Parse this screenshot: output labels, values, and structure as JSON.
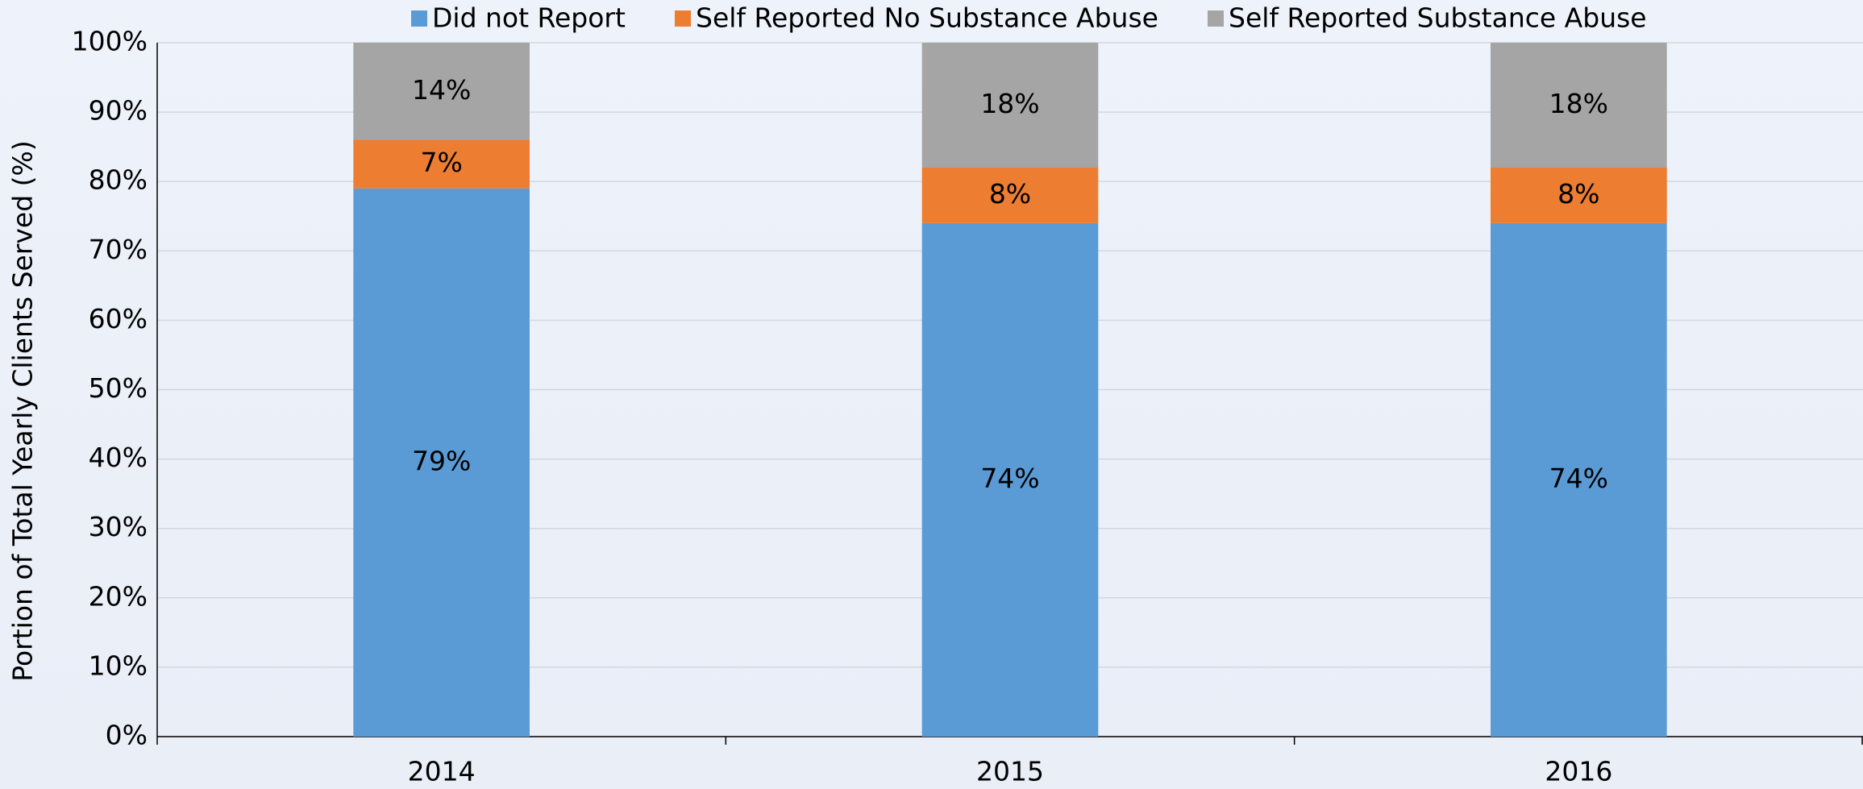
{
  "chart_data": {
    "type": "stacked_bar",
    "y_label": "Portion of Total Yearly Clients Served (%)",
    "categories": [
      "2014",
      "2015",
      "2016"
    ],
    "series": [
      {
        "name": "Did not Report",
        "color": "#5b9bd5",
        "label_color": "#ffffff",
        "values": [
          79,
          74,
          74
        ],
        "value_labels": [
          "79%",
          "74%",
          "74%"
        ]
      },
      {
        "name": "Self Reported No Substance Abuse",
        "color": "#ed7d31",
        "label_color": "#000000",
        "values": [
          7,
          8,
          8
        ],
        "value_labels": [
          "7%",
          "8%",
          "8%"
        ]
      },
      {
        "name": "Self Reported Substance Abuse",
        "color": "#a5a5a5",
        "label_color": "#404040",
        "values": [
          14,
          18,
          18
        ],
        "value_labels": [
          "14%",
          "18%",
          "18%"
        ]
      }
    ],
    "ylim": [
      0,
      100
    ],
    "yticks": [
      {
        "value": 0,
        "label": "0%"
      },
      {
        "value": 10,
        "label": "10%"
      },
      {
        "value": 20,
        "label": "20%"
      },
      {
        "value": 30,
        "label": "30%"
      },
      {
        "value": 40,
        "label": "40%"
      },
      {
        "value": 50,
        "label": "50%"
      },
      {
        "value": 60,
        "label": "60%"
      },
      {
        "value": 70,
        "label": "70%"
      },
      {
        "value": 80,
        "label": "80%"
      },
      {
        "value": 90,
        "label": "90%"
      },
      {
        "value": 100,
        "label": "100%"
      }
    ],
    "grid": true,
    "legend": "top"
  }
}
